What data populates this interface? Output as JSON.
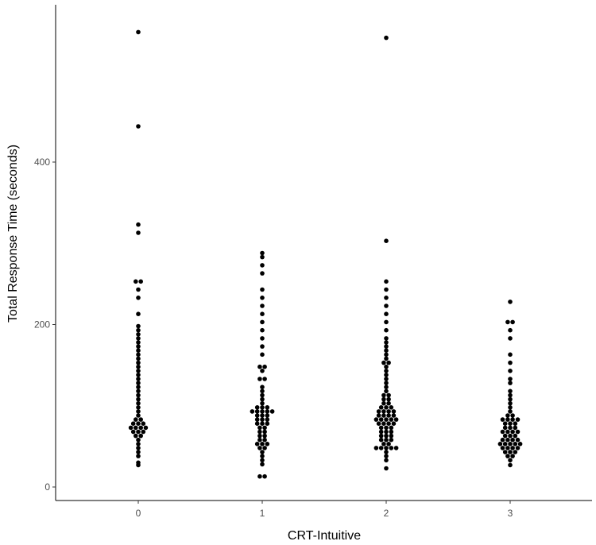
{
  "chart_data": {
    "type": "scatter",
    "subtype": "dotplot",
    "title": "",
    "xlabel": "CRT-Intuitive",
    "ylabel": "Total Response Time (seconds)",
    "categories": [
      "0",
      "1",
      "2",
      "3"
    ],
    "ylim": [
      -25,
      580
    ],
    "yticks": [
      0,
      200,
      400
    ],
    "grid": false,
    "legend": "none",
    "colors": {
      "points": "#000000",
      "axis": "#000000",
      "text": "#4d4d4d",
      "background": "#ffffff"
    },
    "series": [
      {
        "category": "0",
        "values": [
          27,
          30,
          38,
          43,
          48,
          53,
          58,
          63,
          63,
          68,
          68,
          68,
          73,
          73,
          73,
          73,
          78,
          78,
          78,
          83,
          83,
          88,
          93,
          98,
          103,
          108,
          113,
          118,
          123,
          128,
          133,
          138,
          143,
          148,
          153,
          158,
          163,
          168,
          173,
          178,
          183,
          188,
          193,
          198,
          213,
          233,
          243,
          253,
          253,
          313,
          323,
          444,
          560
        ]
      },
      {
        "category": "1",
        "values": [
          13,
          13,
          28,
          33,
          38,
          43,
          48,
          48,
          53,
          53,
          53,
          58,
          58,
          63,
          63,
          68,
          68,
          73,
          73,
          78,
          78,
          78,
          83,
          83,
          83,
          88,
          88,
          88,
          93,
          93,
          93,
          93,
          93,
          98,
          98,
          98,
          103,
          108,
          113,
          118,
          123,
          133,
          133,
          143,
          148,
          148,
          163,
          173,
          183,
          193,
          203,
          213,
          223,
          233,
          243,
          263,
          273,
          283,
          288
        ]
      },
      {
        "category": "2",
        "values": [
          23,
          33,
          38,
          43,
          48,
          48,
          48,
          48,
          48,
          53,
          53,
          58,
          58,
          58,
          63,
          63,
          63,
          68,
          68,
          68,
          73,
          73,
          73,
          78,
          78,
          78,
          78,
          83,
          83,
          83,
          83,
          83,
          88,
          88,
          88,
          88,
          93,
          93,
          93,
          93,
          98,
          98,
          98,
          103,
          103,
          108,
          108,
          113,
          113,
          118,
          123,
          128,
          133,
          138,
          143,
          148,
          153,
          153,
          158,
          163,
          168,
          173,
          178,
          183,
          193,
          203,
          213,
          223,
          233,
          243,
          253,
          303,
          553
        ]
      },
      {
        "category": "3",
        "values": [
          27,
          33,
          38,
          38,
          43,
          43,
          43,
          48,
          48,
          48,
          48,
          53,
          53,
          53,
          53,
          53,
          58,
          58,
          58,
          58,
          63,
          63,
          63,
          68,
          68,
          68,
          68,
          73,
          73,
          73,
          78,
          78,
          78,
          83,
          83,
          83,
          83,
          88,
          88,
          93,
          98,
          103,
          108,
          113,
          118,
          128,
          133,
          143,
          153,
          163,
          183,
          193,
          203,
          203,
          228
        ]
      }
    ]
  }
}
